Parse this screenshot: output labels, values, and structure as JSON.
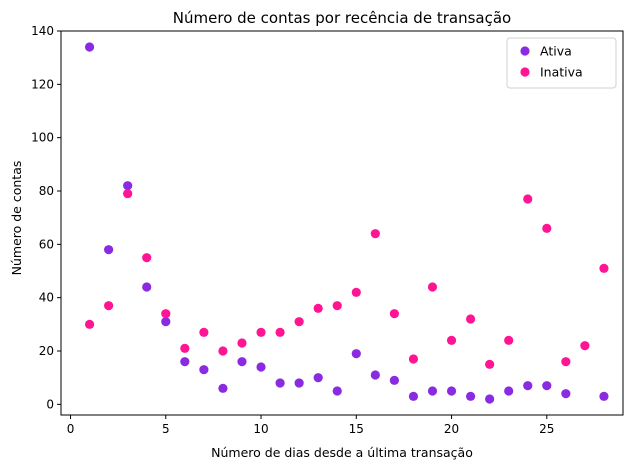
{
  "chart_data": {
    "type": "scatter",
    "title": "Número de contas por recência de transação",
    "xlabel": "Número de dias desde a última transação",
    "ylabel": "Número de contas",
    "xlim": [
      -0.5,
      29.0
    ],
    "ylim": [
      -4,
      140
    ],
    "xticks": [
      0,
      5,
      10,
      15,
      20,
      25
    ],
    "yticks": [
      0,
      20,
      40,
      60,
      80,
      100,
      120,
      140
    ],
    "grid": false,
    "legend_position": "top-right",
    "series": [
      {
        "name": "Ativa",
        "color": "#8a2be2",
        "x": [
          1,
          2,
          3,
          4,
          5,
          6,
          7,
          8,
          9,
          10,
          11,
          12,
          13,
          14,
          15,
          16,
          17,
          18,
          19,
          20,
          21,
          22,
          23,
          24,
          25,
          26,
          28
        ],
        "y": [
          134,
          58,
          82,
          44,
          31,
          16,
          13,
          6,
          16,
          14,
          8,
          8,
          10,
          5,
          19,
          11,
          9,
          3,
          5,
          5,
          3,
          2,
          5,
          7,
          7,
          4,
          3
        ]
      },
      {
        "name": "Inativa",
        "color": "#ff1493",
        "x": [
          1,
          2,
          3,
          4,
          5,
          6,
          7,
          8,
          9,
          10,
          11,
          12,
          13,
          14,
          15,
          16,
          17,
          18,
          19,
          20,
          21,
          22,
          23,
          24,
          25,
          26,
          27,
          28
        ],
        "y": [
          30,
          37,
          79,
          55,
          34,
          21,
          27,
          20,
          23,
          27,
          27,
          31,
          36,
          37,
          42,
          64,
          34,
          17,
          44,
          24,
          32,
          15,
          24,
          77,
          66,
          16,
          22,
          51
        ]
      }
    ]
  }
}
